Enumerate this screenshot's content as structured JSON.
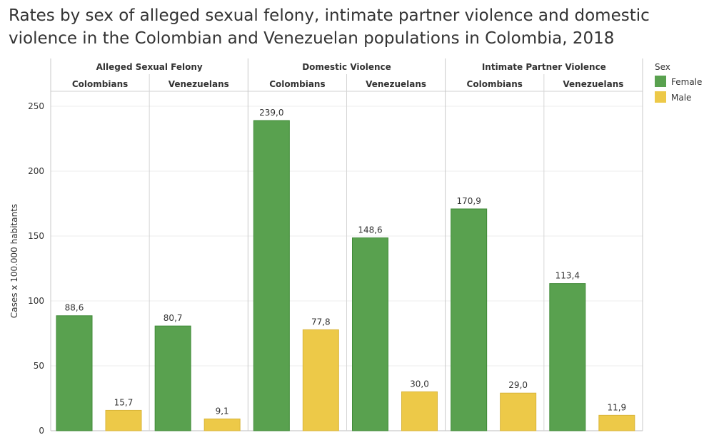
{
  "title_line1": "Rates by sex of alleged sexual felony, intimate partner violence and domestic",
  "title_line2": "violence in the Colombian and Venezuelan populations in Colombia, 2018",
  "chart_data": {
    "type": "bar",
    "title": "Rates by sex of alleged sexual felony, intimate partner violence and domestic violence in the Colombian and Venezuelan populations in Colombia, 2018",
    "ylabel": "Cases x 100.000 habitants",
    "ylim": [
      0,
      260
    ],
    "yticks": [
      0,
      50,
      100,
      150,
      200,
      250
    ],
    "grid": true,
    "legend": {
      "title": "Sex",
      "placement": "top-right",
      "entries": [
        {
          "name": "Female",
          "color": "#59A14F"
        },
        {
          "name": "Male",
          "color": "#EDC948"
        }
      ]
    },
    "groups": [
      {
        "name": "Alleged Sexual Felony",
        "subgroups": [
          {
            "name": "Colombians",
            "values": [
              {
                "sex": "Female",
                "value": 88.6,
                "label": "88,6"
              },
              {
                "sex": "Male",
                "value": 15.7,
                "label": "15,7"
              }
            ]
          },
          {
            "name": "Venezuelans",
            "values": [
              {
                "sex": "Female",
                "value": 80.7,
                "label": "80,7"
              },
              {
                "sex": "Male",
                "value": 9.1,
                "label": "9,1"
              }
            ]
          }
        ]
      },
      {
        "name": "Domestic Violence",
        "subgroups": [
          {
            "name": "Colombians",
            "values": [
              {
                "sex": "Female",
                "value": 239.0,
                "label": "239,0"
              },
              {
                "sex": "Male",
                "value": 77.8,
                "label": "77,8"
              }
            ]
          },
          {
            "name": "Venezuelans",
            "values": [
              {
                "sex": "Female",
                "value": 148.6,
                "label": "148,6"
              },
              {
                "sex": "Male",
                "value": 30.0,
                "label": "30,0"
              }
            ]
          }
        ]
      },
      {
        "name": "Intimate Partner Violence",
        "subgroups": [
          {
            "name": "Colombians",
            "values": [
              {
                "sex": "Female",
                "value": 170.9,
                "label": "170,9"
              },
              {
                "sex": "Male",
                "value": 29.0,
                "label": "29,0"
              }
            ]
          },
          {
            "name": "Venezuelans",
            "values": [
              {
                "sex": "Female",
                "value": 113.4,
                "label": "113,4"
              },
              {
                "sex": "Male",
                "value": 11.9,
                "label": "11,9"
              }
            ]
          }
        ]
      }
    ]
  }
}
